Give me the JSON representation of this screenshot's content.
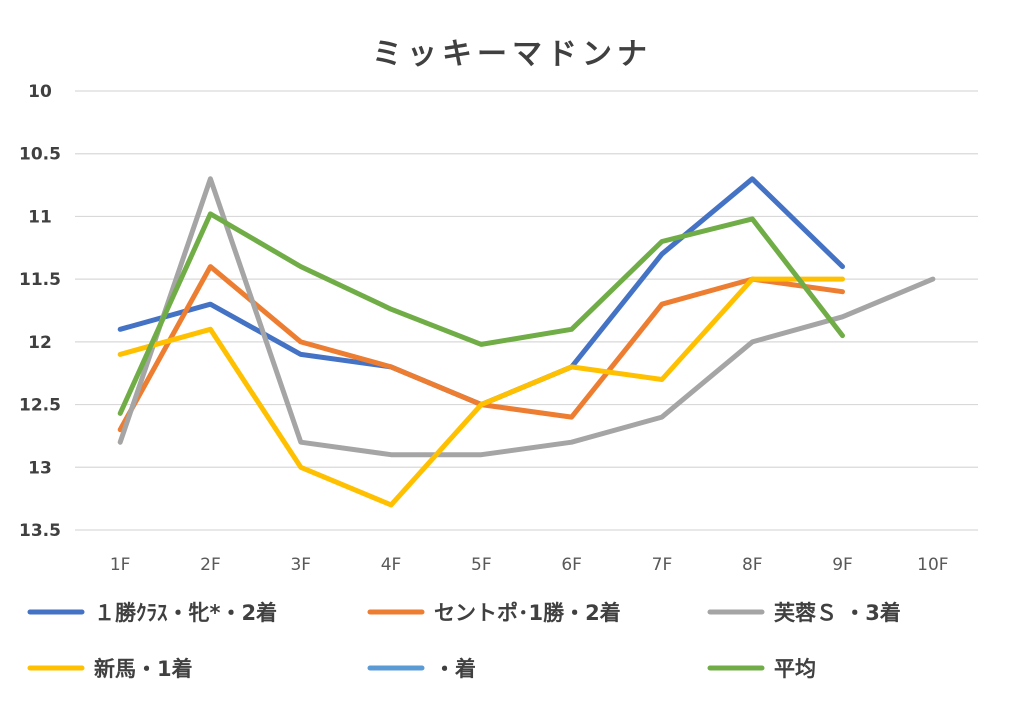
{
  "chart_data": {
    "type": "line",
    "title": "ミッキーマドンナ",
    "xlabel": "",
    "ylabel": "",
    "categories": [
      "1F",
      "2F",
      "3F",
      "4F",
      "5F",
      "6F",
      "7F",
      "8F",
      "9F",
      "10F"
    ],
    "y_ticks": [
      "10",
      "10.5",
      "11",
      "11.5",
      "12",
      "12.5",
      "13",
      "13.5"
    ],
    "ylim": [
      10,
      13.5
    ],
    "y_inverted": true,
    "grid": "horizontal",
    "legend_position": "bottom",
    "series": [
      {
        "name": "１勝ｸﾗｽ・牝*・2着",
        "color": "#4472C4",
        "values": [
          11.9,
          11.7,
          12.1,
          12.2,
          12.5,
          12.2,
          11.3,
          10.7,
          11.4,
          null
        ]
      },
      {
        "name": "セントポ･1勝・2着",
        "color": "#ED7D31",
        "values": [
          12.7,
          11.4,
          12.0,
          12.2,
          12.5,
          12.6,
          11.7,
          11.5,
          11.6,
          null
        ]
      },
      {
        "name": "芙蓉Ｓ ・3着",
        "color": "#A5A5A5",
        "values": [
          12.8,
          10.7,
          12.8,
          12.9,
          12.9,
          12.8,
          12.6,
          12.0,
          11.8,
          11.5
        ]
      },
      {
        "name": "新馬・1着",
        "color": "#FFC000",
        "values": [
          12.1,
          11.9,
          13.0,
          13.3,
          12.5,
          12.2,
          12.3,
          11.5,
          11.5,
          null
        ]
      },
      {
        "name": "・着",
        "color": "#5B9BD5",
        "values": [
          null,
          null,
          null,
          null,
          null,
          null,
          null,
          null,
          null,
          null
        ]
      },
      {
        "name": "平均",
        "color": "#70AD47",
        "values": [
          12.57,
          10.98,
          11.4,
          11.74,
          12.02,
          11.9,
          11.2,
          11.02,
          11.95,
          null
        ]
      }
    ]
  }
}
